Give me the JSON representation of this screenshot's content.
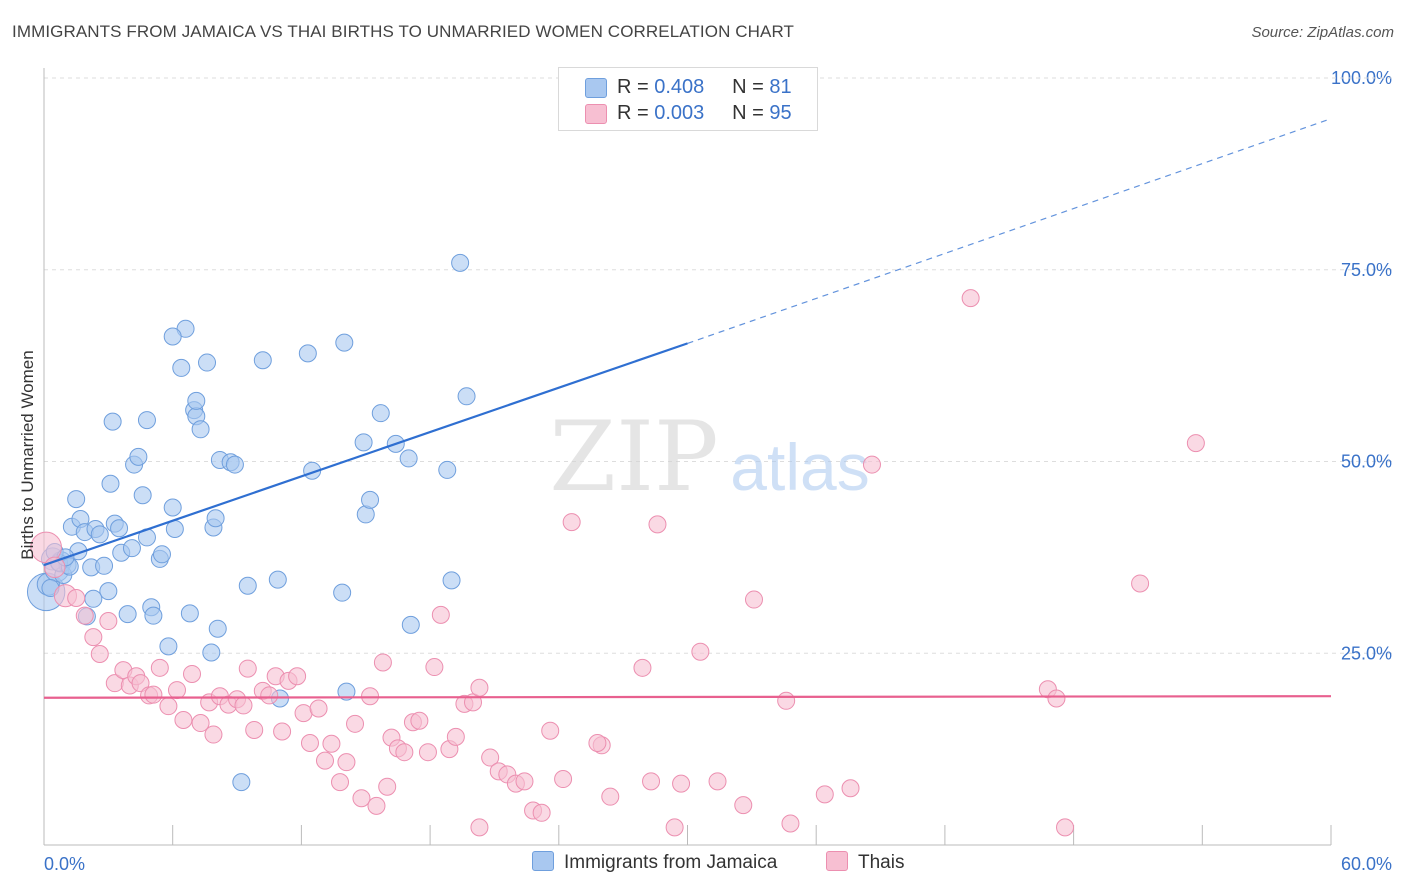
{
  "title": "IMMIGRANTS FROM JAMAICA VS THAI BIRTHS TO UNMARRIED WOMEN CORRELATION CHART",
  "source": "Source: ZipAtlas.com",
  "watermark": {
    "zip": "ZIP",
    "atlas": "atlas"
  },
  "legend_top": {
    "rows": [
      {
        "r_label": "R = ",
        "r_value": "0.408",
        "n_label": "N = ",
        "n_value": "81"
      },
      {
        "r_label": "R = ",
        "r_value": "0.003",
        "n_label": "N = ",
        "n_value": "95"
      }
    ]
  },
  "legend_bottom": [
    "Immigrants from Jamaica",
    "Thais"
  ],
  "colors": {
    "jamaica_fill": "#a9c8f0",
    "jamaica_stroke": "#6f9fdd",
    "jamaica_line": "#2f6fd1",
    "thai_fill": "#f7bfd2",
    "thai_stroke": "#ec8fb0",
    "thai_line": "#e8608f",
    "tick_label": "#3a72c8",
    "grid": "#dddddd"
  },
  "chart_data": {
    "type": "scatter",
    "title": "IMMIGRANTS FROM JAMAICA VS THAI BIRTHS TO UNMARRIED WOMEN CORRELATION CHART",
    "xlabel": "",
    "ylabel": "Births to Unmarried Women",
    "xlim": [
      0,
      60
    ],
    "ylim": [
      0,
      100
    ],
    "x_tick_labels": [
      "0.0%",
      "60.0%"
    ],
    "y_ticks": [
      25,
      50,
      75,
      100
    ],
    "y_tick_labels": [
      "25.0%",
      "50.0%",
      "75.0%",
      "100.0%"
    ],
    "grid": true,
    "legend_position": "top-center",
    "series": [
      {
        "name": "Immigrants from Jamaica",
        "r": 0.408,
        "n": 81,
        "trend": {
          "x_solid": [
            0,
            30
          ],
          "y_solid": [
            36.5,
            65.4
          ],
          "x_dashed": [
            30,
            60
          ],
          "y_dashed": [
            65.4,
            94.7
          ]
        },
        "points": [
          [
            0.1,
            33.0,
            2.2
          ],
          [
            0.2,
            34.0,
            1.3
          ],
          [
            0.4,
            37.3,
            1.3
          ],
          [
            0.6,
            35.9,
            1.4
          ],
          [
            0.8,
            36.9,
            1.2
          ],
          [
            0.9,
            35.2,
            1.0
          ],
          [
            1.1,
            36.5,
            1.0
          ],
          [
            1.3,
            41.5,
            1.0
          ],
          [
            1.5,
            45.1,
            1.0
          ],
          [
            1.7,
            42.5,
            1.0
          ],
          [
            1.9,
            40.8,
            1.0
          ],
          [
            2.0,
            29.8,
            1.0
          ],
          [
            2.2,
            36.2,
            1.0
          ],
          [
            2.4,
            41.2,
            1.0
          ],
          [
            2.8,
            36.4,
            1.0
          ],
          [
            3.1,
            47.1,
            1.0
          ],
          [
            3.0,
            33.1,
            1.0
          ],
          [
            3.3,
            41.9,
            1.0
          ],
          [
            3.5,
            41.3,
            1.0
          ],
          [
            3.6,
            38.1,
            1.0
          ],
          [
            3.9,
            30.1,
            1.0
          ],
          [
            4.1,
            38.7,
            1.0
          ],
          [
            4.2,
            49.6,
            1.0
          ],
          [
            4.4,
            50.6,
            1.0
          ],
          [
            4.6,
            45.6,
            1.0
          ],
          [
            4.8,
            40.1,
            1.0
          ],
          [
            5.0,
            31.0,
            1.0
          ],
          [
            5.1,
            29.9,
            1.0
          ],
          [
            5.4,
            37.3,
            1.0
          ],
          [
            5.5,
            37.9,
            1.0
          ],
          [
            5.8,
            25.9,
            1.0
          ],
          [
            6.0,
            44.0,
            1.0
          ],
          [
            6.1,
            41.2,
            1.0
          ],
          [
            6.4,
            62.2,
            1.0
          ],
          [
            6.6,
            67.3,
            1.0
          ],
          [
            6.8,
            30.2,
            1.0
          ],
          [
            7.0,
            56.7,
            1.0
          ],
          [
            7.1,
            55.9,
            1.0
          ],
          [
            7.3,
            54.2,
            1.0
          ],
          [
            7.6,
            62.9,
            1.0
          ],
          [
            7.8,
            25.1,
            1.0
          ],
          [
            7.9,
            41.4,
            1.0
          ],
          [
            8.0,
            42.6,
            1.0
          ],
          [
            8.1,
            28.2,
            1.0
          ],
          [
            8.2,
            50.2,
            1.0
          ],
          [
            8.7,
            49.9,
            1.0
          ],
          [
            8.9,
            49.6,
            1.0
          ],
          [
            9.2,
            8.2,
            1.0
          ],
          [
            9.5,
            33.8,
            1.0
          ],
          [
            10.2,
            63.2,
            1.0
          ],
          [
            10.9,
            34.6,
            1.0
          ],
          [
            11.0,
            19.1,
            1.0
          ],
          [
            12.3,
            64.1,
            1.0
          ],
          [
            12.5,
            48.8,
            1.0
          ],
          [
            13.9,
            32.9,
            1.0
          ],
          [
            14.0,
            65.5,
            1.0
          ],
          [
            14.1,
            20.0,
            1.0
          ],
          [
            14.9,
            52.5,
            1.0
          ],
          [
            15.0,
            43.1,
            1.0
          ],
          [
            15.2,
            45.0,
            1.0
          ],
          [
            15.7,
            56.3,
            1.0
          ],
          [
            16.4,
            52.3,
            1.0
          ],
          [
            17.0,
            50.4,
            1.0
          ],
          [
            17.1,
            28.7,
            1.0
          ],
          [
            18.8,
            48.9,
            1.0
          ],
          [
            19.0,
            34.5,
            1.0
          ],
          [
            19.4,
            75.9,
            1.0
          ],
          [
            19.7,
            58.5,
            1.0
          ],
          [
            7.1,
            57.9,
            1.0
          ],
          [
            6.0,
            66.3,
            1.0
          ],
          [
            4.8,
            55.4,
            1.0
          ],
          [
            3.2,
            55.2,
            1.0
          ],
          [
            1.6,
            38.3,
            1.0
          ],
          [
            2.6,
            40.5,
            1.0
          ],
          [
            0.7,
            36.8,
            1.0
          ],
          [
            1.2,
            36.3,
            1.0
          ],
          [
            0.5,
            38.2,
            1.0
          ],
          [
            0.3,
            33.5,
            1.0
          ],
          [
            1.0,
            37.5,
            1.0
          ],
          [
            2.3,
            32.1,
            1.0
          ],
          [
            26.6,
            99.5,
            1.0
          ]
        ]
      },
      {
        "name": "Thais",
        "r": 0.003,
        "n": 95,
        "trend": {
          "x_solid": [
            0,
            60
          ],
          "y_solid": [
            19.2,
            19.4
          ]
        },
        "points": [
          [
            0.1,
            38.8,
            1.8
          ],
          [
            0.5,
            36.2,
            1.2
          ],
          [
            1.0,
            32.5,
            1.3
          ],
          [
            1.5,
            32.2,
            1.0
          ],
          [
            1.9,
            29.9,
            1.0
          ],
          [
            2.3,
            27.1,
            1.0
          ],
          [
            2.6,
            24.9,
            1.0
          ],
          [
            3.0,
            29.2,
            1.0
          ],
          [
            3.3,
            21.1,
            1.0
          ],
          [
            3.7,
            22.8,
            1.0
          ],
          [
            4.0,
            20.8,
            1.0
          ],
          [
            4.3,
            22.0,
            1.0
          ],
          [
            4.5,
            21.1,
            1.0
          ],
          [
            4.9,
            19.5,
            1.0
          ],
          [
            5.1,
            19.6,
            1.0
          ],
          [
            5.4,
            23.1,
            1.0
          ],
          [
            5.8,
            18.1,
            1.0
          ],
          [
            6.2,
            20.2,
            1.0
          ],
          [
            6.5,
            16.3,
            1.0
          ],
          [
            6.9,
            22.3,
            1.0
          ],
          [
            7.3,
            15.9,
            1.0
          ],
          [
            7.7,
            18.6,
            1.0
          ],
          [
            7.9,
            14.4,
            1.0
          ],
          [
            8.2,
            19.4,
            1.0
          ],
          [
            8.6,
            18.3,
            1.0
          ],
          [
            9.0,
            19.0,
            1.0
          ],
          [
            9.3,
            18.2,
            1.0
          ],
          [
            9.5,
            23.0,
            1.0
          ],
          [
            9.8,
            15.0,
            1.0
          ],
          [
            10.2,
            20.1,
            1.0
          ],
          [
            10.5,
            19.5,
            1.0
          ],
          [
            10.8,
            22.0,
            1.0
          ],
          [
            11.1,
            14.8,
            1.0
          ],
          [
            11.4,
            21.4,
            1.0
          ],
          [
            11.8,
            22.0,
            1.0
          ],
          [
            12.1,
            17.2,
            1.0
          ],
          [
            12.4,
            13.3,
            1.0
          ],
          [
            12.8,
            17.8,
            1.0
          ],
          [
            13.1,
            11.0,
            1.0
          ],
          [
            13.4,
            13.2,
            1.0
          ],
          [
            13.8,
            8.2,
            1.0
          ],
          [
            14.1,
            10.8,
            1.0
          ],
          [
            14.5,
            15.8,
            1.0
          ],
          [
            14.8,
            6.1,
            1.0
          ],
          [
            15.2,
            19.4,
            1.0
          ],
          [
            15.5,
            5.1,
            1.0
          ],
          [
            15.8,
            23.8,
            1.0
          ],
          [
            16.2,
            14.0,
            1.0
          ],
          [
            16.5,
            12.6,
            1.0
          ],
          [
            16.8,
            12.1,
            1.0
          ],
          [
            17.2,
            16.0,
            1.0
          ],
          [
            17.5,
            16.2,
            1.0
          ],
          [
            17.9,
            12.1,
            1.0
          ],
          [
            18.2,
            23.2,
            1.0
          ],
          [
            18.5,
            30.0,
            1.0
          ],
          [
            18.9,
            12.5,
            1.0
          ],
          [
            19.2,
            14.1,
            1.0
          ],
          [
            19.6,
            18.4,
            1.0
          ],
          [
            20.0,
            18.6,
            1.0
          ],
          [
            20.3,
            2.3,
            1.0
          ],
          [
            20.8,
            11.4,
            1.0
          ],
          [
            21.2,
            9.6,
            1.0
          ],
          [
            21.6,
            9.2,
            1.0
          ],
          [
            22.0,
            8.0,
            1.0
          ],
          [
            22.4,
            8.3,
            1.0
          ],
          [
            22.8,
            4.5,
            1.0
          ],
          [
            23.2,
            4.2,
            1.0
          ],
          [
            23.6,
            14.9,
            1.0
          ],
          [
            24.2,
            8.6,
            1.0
          ],
          [
            24.6,
            42.1,
            1.0
          ],
          [
            26.0,
            13.0,
            1.0
          ],
          [
            26.4,
            6.3,
            1.0
          ],
          [
            27.9,
            23.1,
            1.0
          ],
          [
            28.3,
            8.3,
            1.0
          ],
          [
            28.6,
            41.8,
            1.0
          ],
          [
            29.4,
            2.3,
            1.0
          ],
          [
            29.7,
            8.0,
            1.0
          ],
          [
            30.6,
            25.2,
            1.0
          ],
          [
            31.4,
            8.3,
            1.0
          ],
          [
            32.6,
            5.2,
            1.0
          ],
          [
            33.1,
            32.0,
            1.0
          ],
          [
            34.6,
            18.8,
            1.0
          ],
          [
            34.8,
            2.8,
            1.0
          ],
          [
            36.4,
            6.6,
            1.0
          ],
          [
            37.6,
            7.4,
            1.0
          ],
          [
            38.6,
            49.6,
            1.0
          ],
          [
            43.2,
            71.3,
            1.0
          ],
          [
            46.8,
            20.3,
            1.0
          ],
          [
            47.2,
            19.1,
            1.0
          ],
          [
            47.6,
            2.3,
            1.0
          ],
          [
            51.1,
            34.1,
            1.0
          ],
          [
            53.7,
            52.4,
            1.0
          ],
          [
            20.3,
            20.5,
            1.0
          ],
          [
            16.0,
            7.6,
            1.0
          ],
          [
            25.8,
            13.3,
            1.0
          ]
        ]
      }
    ]
  }
}
